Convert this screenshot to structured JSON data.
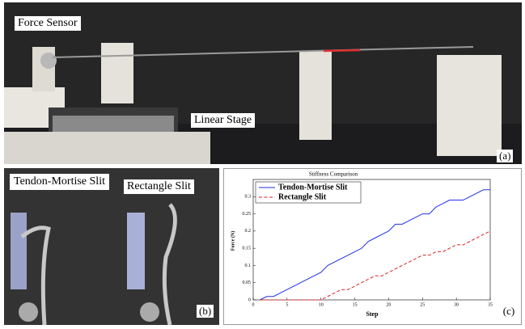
{
  "panel_a": {
    "labels": [
      "Force Sensor",
      "Linear Stage"
    ],
    "tag": "(a)"
  },
  "panel_b": {
    "labels": [
      "Tendon-Mortise Slit",
      "Rectangle Slit"
    ],
    "tag": "(b)"
  },
  "chart_data": {
    "type": "line",
    "title": "Stiffness Comparison",
    "tag": "(c)",
    "x_label": "Step",
    "y_label": "Force (N)",
    "x": [
      1,
      2,
      3,
      4,
      5,
      6,
      7,
      8,
      9,
      10,
      11,
      12,
      13,
      14,
      15,
      16,
      17,
      18,
      19,
      20,
      21,
      22,
      23,
      24,
      25,
      26,
      27,
      28,
      29,
      30,
      31,
      32,
      33,
      34,
      35
    ],
    "series": [
      {
        "name": "Tendon-Mortise Slit",
        "color": "#1f2fe0",
        "dash": "solid",
        "values": [
          0,
          0.01,
          0.01,
          0.02,
          0.03,
          0.04,
          0.05,
          0.06,
          0.07,
          0.08,
          0.1,
          0.11,
          0.12,
          0.13,
          0.14,
          0.15,
          0.17,
          0.18,
          0.19,
          0.2,
          0.22,
          0.22,
          0.23,
          0.24,
          0.25,
          0.25,
          0.27,
          0.28,
          0.29,
          0.29,
          0.29,
          0.3,
          0.31,
          0.32,
          0.32
        ]
      },
      {
        "name": "Rectangle Slit",
        "color": "#e02020",
        "dash": "dashed",
        "values": [
          0,
          0,
          0,
          0,
          0,
          0,
          0,
          0,
          0,
          0,
          0.01,
          0.02,
          0.03,
          0.03,
          0.04,
          0.05,
          0.06,
          0.07,
          0.07,
          0.08,
          0.09,
          0.1,
          0.11,
          0.12,
          0.13,
          0.13,
          0.14,
          0.14,
          0.15,
          0.16,
          0.16,
          0.17,
          0.18,
          0.19,
          0.2
        ]
      }
    ],
    "xlim": [
      0,
      35
    ],
    "xticks": [
      0,
      5,
      10,
      15,
      20,
      25,
      30,
      35
    ],
    "ylim": [
      0,
      0.35
    ],
    "yticks": [
      0,
      0.05,
      0.1,
      0.15,
      0.2,
      0.25,
      0.3
    ],
    "legend": "upper left",
    "grid": false
  }
}
